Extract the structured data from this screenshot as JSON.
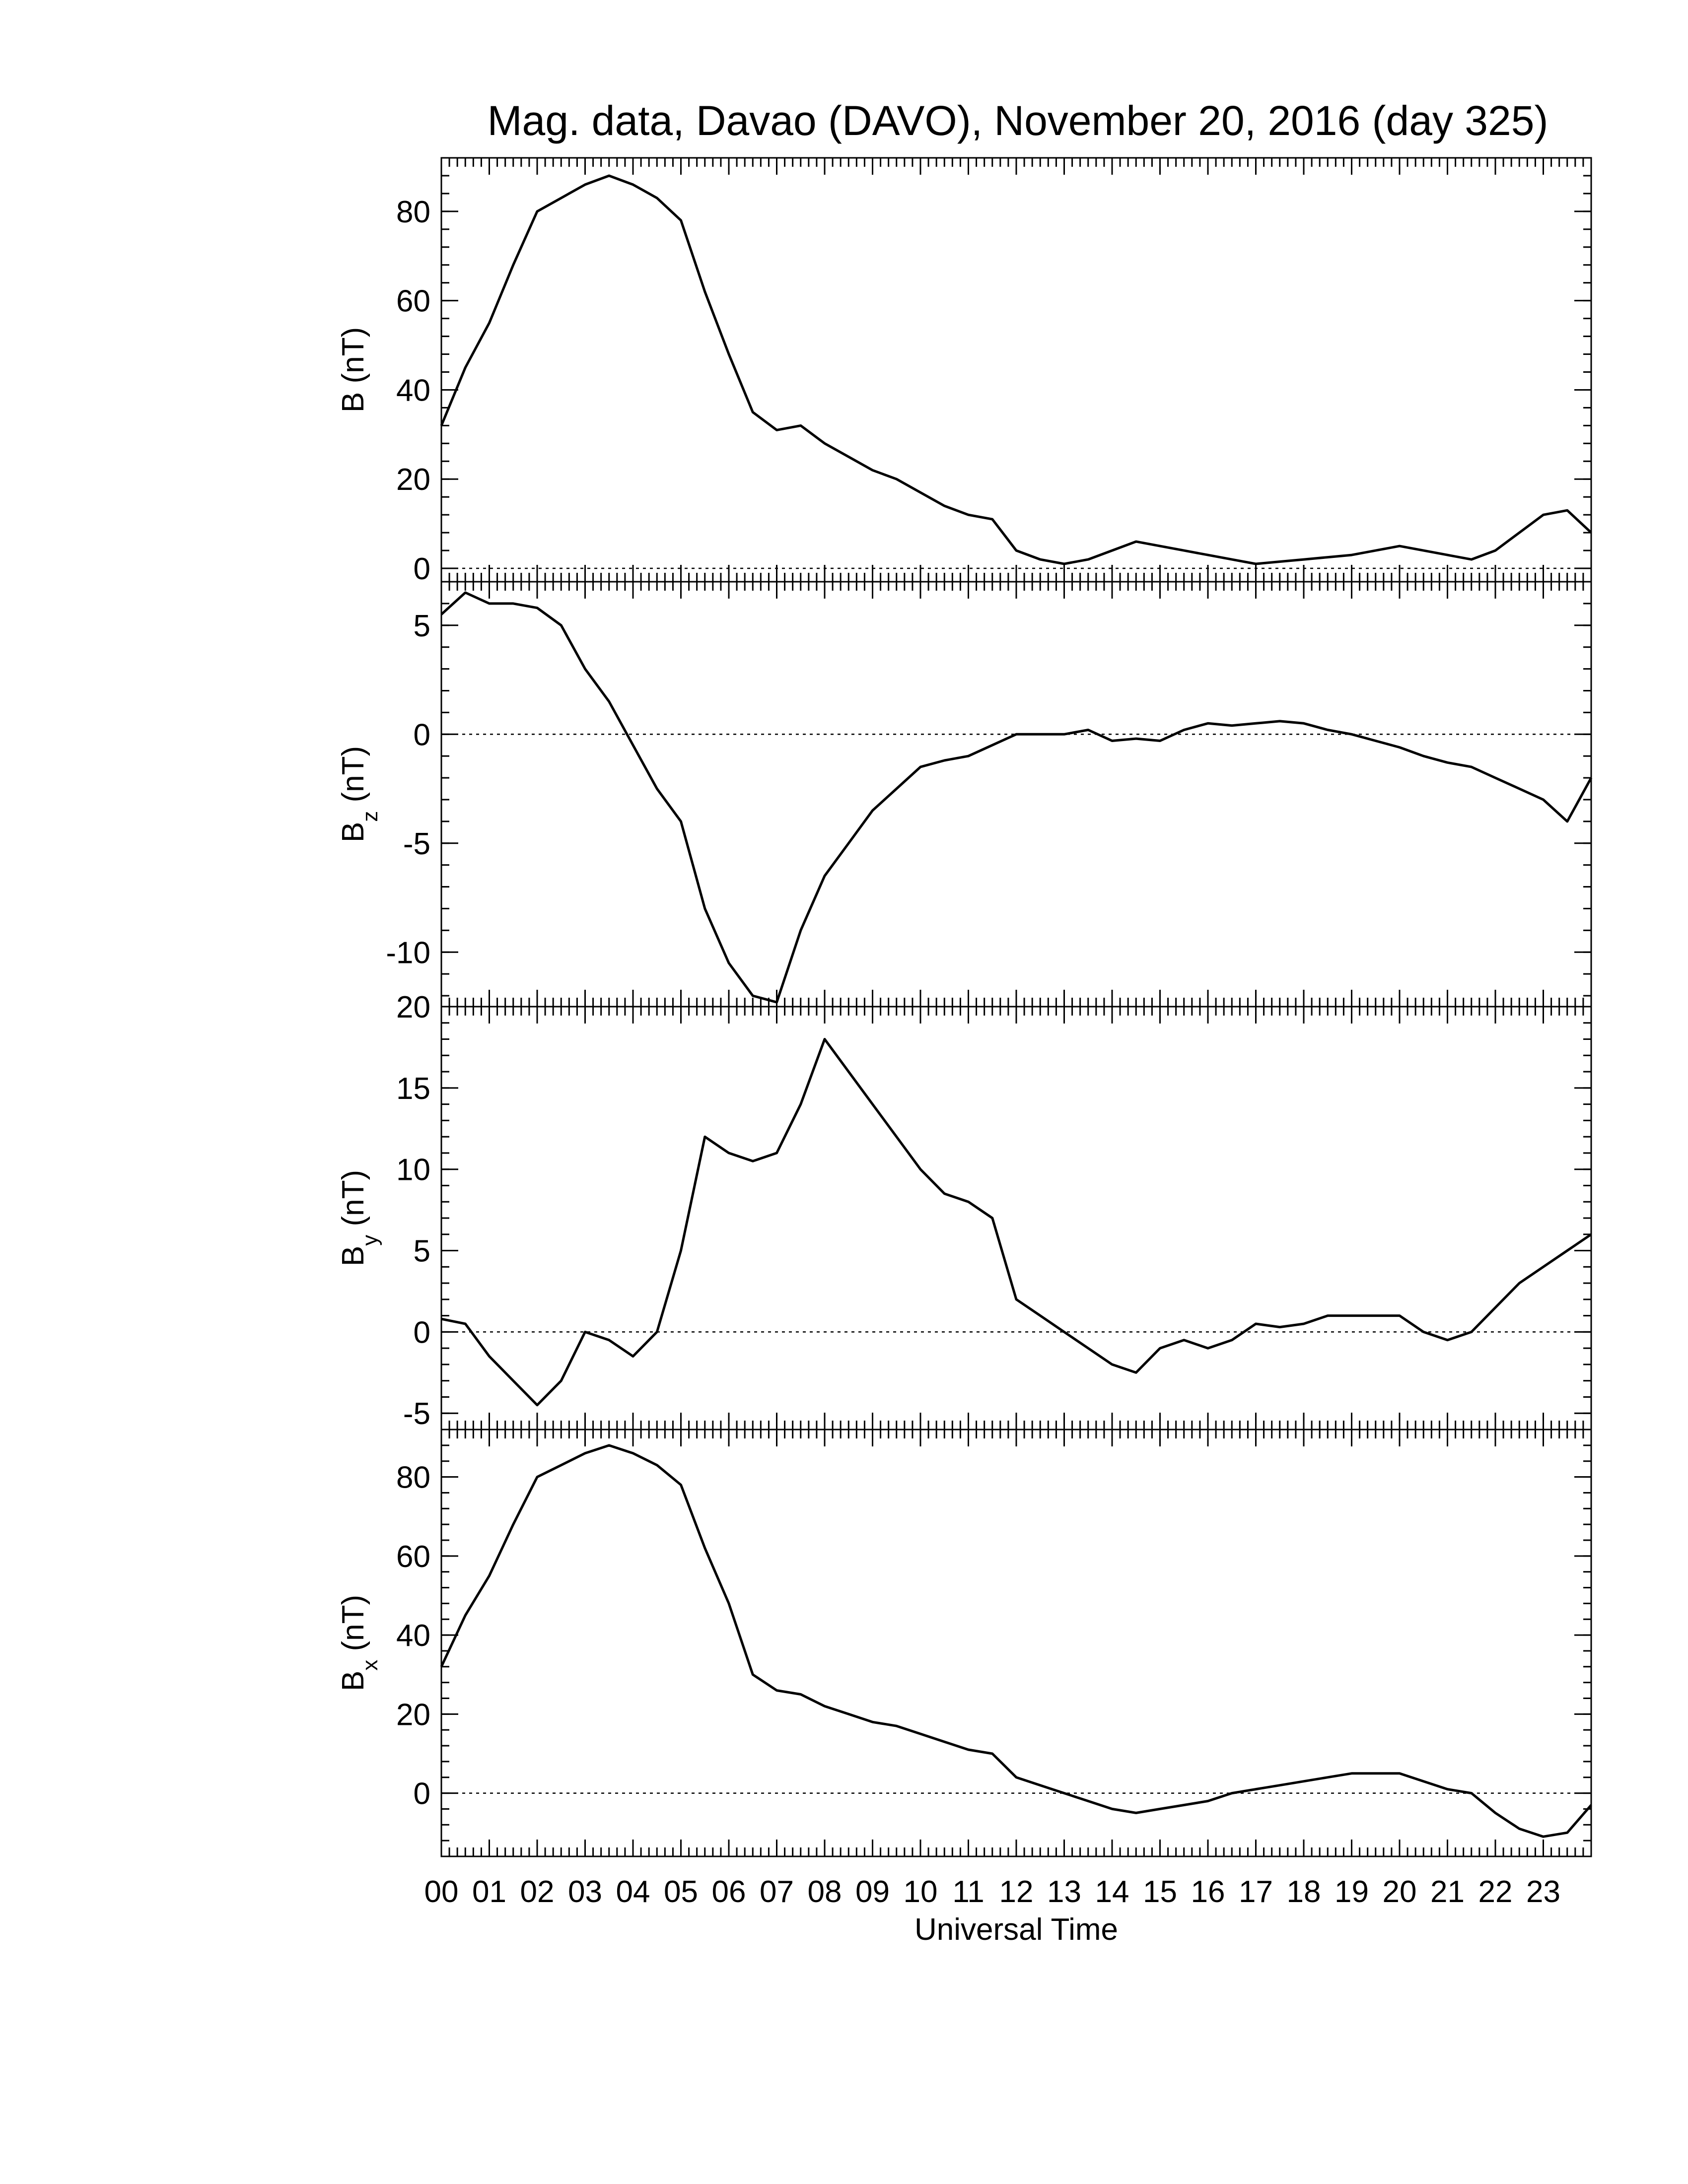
{
  "chart_data": {
    "title": "Mag. data, Davao (DAVO), November 20, 2016 (day 325)",
    "xlabel": "Universal Time",
    "x_tick_labels": [
      "00",
      "01",
      "02",
      "03",
      "04",
      "05",
      "06",
      "07",
      "08",
      "09",
      "10",
      "11",
      "12",
      "13",
      "14",
      "15",
      "16",
      "17",
      "18",
      "19",
      "20",
      "21",
      "22",
      "23"
    ],
    "panels": [
      {
        "type": "line",
        "ylabel_base": "B",
        "ylabel_sub": "",
        "ylabel_unit": "(nT)",
        "ylim": [
          -3,
          92
        ],
        "yticks": [
          0,
          20,
          40,
          60,
          80
        ],
        "ytick_labels": [
          "0",
          "20",
          "40",
          "60",
          "80"
        ],
        "zero_line": true,
        "series": [
          {
            "x": [
              0,
              0.5,
              1,
              1.5,
              2,
              2.5,
              3,
              3.5,
              4,
              4.5,
              5,
              5.5,
              6,
              6.5,
              7,
              7.5,
              8,
              8.5,
              9,
              9.5,
              10,
              10.5,
              11,
              11.5,
              12,
              12.5,
              13,
              13.5,
              14,
              14.5,
              15,
              15.5,
              16,
              16.5,
              17,
              17.5,
              18,
              18.5,
              19,
              19.5,
              20,
              20.5,
              21,
              21.5,
              22,
              22.5,
              23,
              23.5,
              24
            ],
            "y": [
              32,
              45,
              55,
              68,
              80,
              83,
              86,
              88,
              86,
              83,
              78,
              62,
              48,
              35,
              31,
              32,
              28,
              25,
              22,
              20,
              17,
              14,
              12,
              11,
              4,
              2,
              1,
              2,
              4,
              6,
              5,
              4,
              3,
              2,
              1,
              1.5,
              2,
              2.5,
              3,
              4,
              5,
              4,
              3,
              2,
              4,
              8,
              12,
              13,
              8
            ]
          }
        ]
      },
      {
        "type": "line",
        "ylabel_base": "B",
        "ylabel_sub": "z",
        "ylabel_unit": "(nT)",
        "ylim": [
          -12.5,
          7
        ],
        "yticks": [
          -10,
          -5,
          0,
          5
        ],
        "ytick_labels": [
          "-10",
          "-5",
          "0",
          "5"
        ],
        "zero_line": true,
        "series": [
          {
            "x": [
              0,
              0.5,
              1,
              1.5,
              2,
              2.5,
              3,
              3.5,
              4,
              4.5,
              5,
              5.5,
              6,
              6.5,
              7,
              7.5,
              8,
              8.5,
              9,
              9.5,
              10,
              10.5,
              11,
              11.5,
              12,
              12.5,
              13,
              13.5,
              14,
              14.5,
              15,
              15.5,
              16,
              16.5,
              17,
              17.5,
              18,
              18.5,
              19,
              19.5,
              20,
              20.5,
              21,
              21.5,
              22,
              22.5,
              23,
              23.5,
              24
            ],
            "y": [
              5.5,
              6.5,
              6,
              6,
              5.8,
              5,
              3,
              1.5,
              -0.5,
              -2.5,
              -4,
              -8,
              -10.5,
              -12,
              -12.3,
              -9,
              -6.5,
              -5,
              -3.5,
              -2.5,
              -1.5,
              -1.2,
              -1,
              -0.5,
              0,
              0,
              0,
              0.2,
              -0.3,
              -0.2,
              -0.3,
              0.2,
              0.5,
              0.4,
              0.5,
              0.6,
              0.5,
              0.2,
              0,
              -0.3,
              -0.6,
              -1,
              -1.3,
              -1.5,
              -2,
              -2.5,
              -3,
              -4,
              -2
            ]
          }
        ]
      },
      {
        "type": "line",
        "ylabel_base": "B",
        "ylabel_sub": "y",
        "ylabel_unit": "(nT)",
        "ylim": [
          -6,
          20
        ],
        "yticks": [
          -5,
          0,
          5,
          10,
          15,
          20
        ],
        "ytick_labels": [
          "-5",
          "0",
          "5",
          "10",
          "15",
          "20"
        ],
        "zero_line": true,
        "series": [
          {
            "x": [
              0,
              0.5,
              1,
              1.5,
              2,
              2.5,
              3,
              3.5,
              4,
              4.5,
              5,
              5.5,
              6,
              6.5,
              7,
              7.5,
              8,
              8.5,
              9,
              9.5,
              10,
              10.5,
              11,
              11.5,
              12,
              12.5,
              13,
              13.5,
              14,
              14.5,
              15,
              15.5,
              16,
              16.5,
              17,
              17.5,
              18,
              18.5,
              19,
              19.5,
              20,
              20.5,
              21,
              21.5,
              22,
              22.5,
              23,
              23.5,
              24
            ],
            "y": [
              0.8,
              0.5,
              -1.5,
              -3,
              -4.5,
              -3,
              0,
              -0.5,
              -1.5,
              0,
              5,
              12,
              11,
              10.5,
              11,
              14,
              18,
              16,
              14,
              12,
              10,
              8.5,
              8,
              7,
              2,
              1,
              0,
              -1,
              -2,
              -2.5,
              -1,
              -0.5,
              -1,
              -0.5,
              0.5,
              0.3,
              0.5,
              1,
              1,
              1,
              1,
              0,
              -0.5,
              0,
              1.5,
              3,
              4,
              5,
              6
            ]
          }
        ]
      },
      {
        "type": "line",
        "ylabel_base": "B",
        "ylabel_sub": "x",
        "ylabel_unit": "(nT)",
        "ylim": [
          -16,
          92
        ],
        "yticks": [
          0,
          20,
          40,
          60,
          80
        ],
        "ytick_labels": [
          "0",
          "20",
          "40",
          "60",
          "80"
        ],
        "zero_line": true,
        "series": [
          {
            "x": [
              0,
              0.5,
              1,
              1.5,
              2,
              2.5,
              3,
              3.5,
              4,
              4.5,
              5,
              5.5,
              6,
              6.5,
              7,
              7.5,
              8,
              8.5,
              9,
              9.5,
              10,
              10.5,
              11,
              11.5,
              12,
              12.5,
              13,
              13.5,
              14,
              14.5,
              15,
              15.5,
              16,
              16.5,
              17,
              17.5,
              18,
              18.5,
              19,
              19.5,
              20,
              20.5,
              21,
              21.5,
              22,
              22.5,
              23,
              23.5,
              24
            ],
            "y": [
              32,
              45,
              55,
              68,
              80,
              83,
              86,
              88,
              86,
              83,
              78,
              62,
              48,
              30,
              26,
              25,
              22,
              20,
              18,
              17,
              15,
              13,
              11,
              10,
              4,
              2,
              0,
              -2,
              -4,
              -5,
              -4,
              -3,
              -2,
              0,
              1,
              2,
              3,
              4,
              5,
              5,
              5,
              3,
              1,
              0,
              -5,
              -9,
              -11,
              -10,
              -3
            ]
          }
        ]
      }
    ]
  }
}
